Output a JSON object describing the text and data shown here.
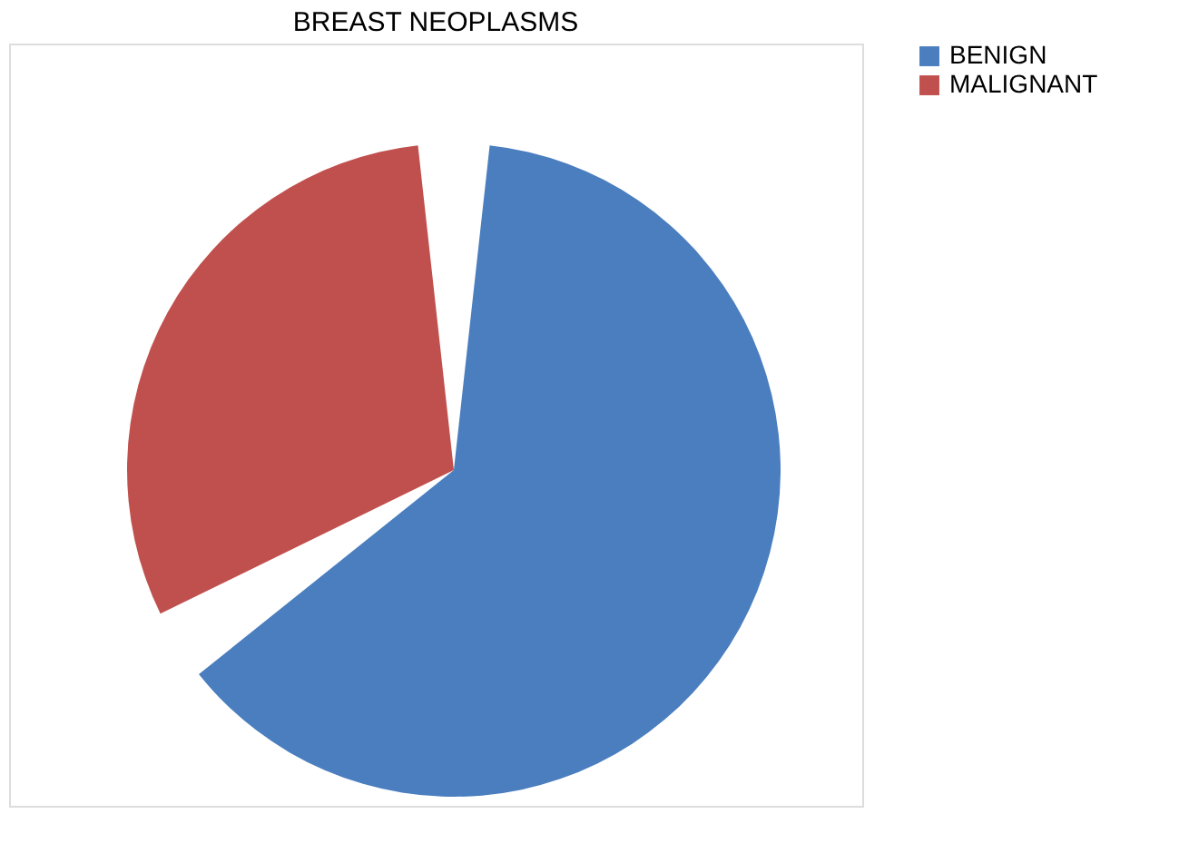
{
  "chart_data": {
    "type": "pie",
    "title": "BREAST NEOPLASMS",
    "categories": [
      "BENIGN",
      "MALIGNANT"
    ],
    "values": [
      66,
      34
    ],
    "colors": [
      "#4a7ebf",
      "#c0504d"
    ],
    "legend": "right"
  }
}
